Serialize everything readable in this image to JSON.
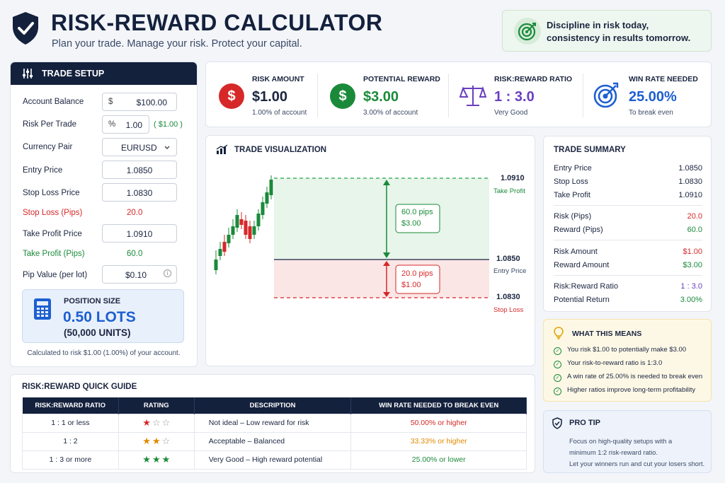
{
  "header": {
    "title": "RISK-REWARD CALCULATOR",
    "subtitle": "Plan your trade. Manage your risk. Protect your capital.",
    "quote_line1": "Discipline in risk today,",
    "quote_line2": "consistency in results tomorrow."
  },
  "setup": {
    "title": "TRADE SETUP",
    "account_balance_label": "Account Balance",
    "account_balance_prefix": "$",
    "account_balance_value": "$100.00",
    "risk_per_trade_label": "Risk Per Trade",
    "risk_per_trade_prefix": "%",
    "risk_per_trade_value": "1.00",
    "risk_per_trade_amount": "( $1.00 )",
    "currency_pair_label": "Currency Pair",
    "currency_pair_value": "EURUSD",
    "entry_price_label": "Entry Price",
    "entry_price_value": "1.0850",
    "stop_loss_label": "Stop Loss Price",
    "stop_loss_value": "1.0830",
    "stop_loss_pips_label": "Stop Loss (Pips)",
    "stop_loss_pips_value": "20.0",
    "take_profit_label": "Take Profit Price",
    "take_profit_value": "1.0910",
    "take_profit_pips_label": "Take Profit (Pips)",
    "take_profit_pips_value": "60.0",
    "pip_value_label": "Pip Value (per lot)",
    "pip_value_value": "$0.10",
    "position_size_title": "POSITION SIZE",
    "position_size_lots": "0.50 LOTS",
    "position_size_units": "(50,000 UNITS)",
    "position_note": "Calculated to risk $1.00 (1.00%) of your account."
  },
  "metrics": [
    {
      "label": "RISK AMOUNT",
      "value": "$1.00",
      "sub": "1.00% of account",
      "icon": "dollar-icon"
    },
    {
      "label": "POTENTIAL REWARD",
      "value": "$3.00",
      "sub": "3.00% of account",
      "icon": "dollar-icon"
    },
    {
      "label": "RISK:REWARD RATIO",
      "value": "1 : 3.0",
      "sub": "Very Good",
      "icon": "scale-icon"
    },
    {
      "label": "WIN RATE NEEDED",
      "value": "25.00%",
      "sub": "To break even",
      "icon": "target-icon"
    }
  ],
  "visualization": {
    "title": "TRADE VISUALIZATION",
    "tp_price": "1.0910",
    "tp_label": "Take Profit",
    "entry_price": "1.0850",
    "entry_label": "Entry Price",
    "sl_price": "1.0830",
    "sl_label": "Stop Loss",
    "reward_pips": "60.0 pips",
    "reward_amount": "$3.00",
    "risk_pips": "20.0 pips",
    "risk_amount": "$1.00"
  },
  "summary": {
    "title": "TRADE SUMMARY",
    "rows": [
      {
        "k": "Entry Price",
        "v": "1.0850"
      },
      {
        "k": "Stop Loss",
        "v": "1.0830"
      },
      {
        "k": "Take Profit",
        "v": "1.0910"
      },
      {
        "k": "Risk (Pips)",
        "v": "20.0"
      },
      {
        "k": "Reward (Pips)",
        "v": "60.0"
      },
      {
        "k": "Risk Amount",
        "v": "$1.00"
      },
      {
        "k": "Reward Amount",
        "v": "$3.00"
      },
      {
        "k": "Risk:Reward Ratio",
        "v": "1 : 3.0"
      },
      {
        "k": "Potential Return",
        "v": "3.00%"
      }
    ]
  },
  "means": {
    "title": "WHAT THIS MEANS",
    "items": [
      "You risk $1.00 to potentially make $3.00",
      "Your risk-to-reward ratio is 1:3.0",
      "A win rate of 25.00% is needed to break even",
      "Higher ratios improve long-term profitability"
    ]
  },
  "protip": {
    "title": "PRO TIP",
    "line1": "Focus on high-quality setups with a",
    "line2": "minimum 1:2 risk-reward ratio.",
    "line3": "Let your winners run and cut your losers short."
  },
  "guide": {
    "title": "RISK:REWARD QUICK GUIDE",
    "headers": [
      "RISK:REWARD RATIO",
      "RATING",
      "DESCRIPTION",
      "WIN RATE NEEDED TO BREAK EVEN"
    ],
    "rows": [
      {
        "ratio": "1 : 1 or less",
        "stars": 1,
        "desc": "Not ideal – Low reward for risk",
        "win": "50.00% or higher",
        "color": "#d62828"
      },
      {
        "ratio": "1 : 2",
        "stars": 2,
        "desc": "Acceptable – Balanced",
        "win": "33.33% or higher",
        "color": "#e08a00"
      },
      {
        "ratio": "1 : 3 or more",
        "stars": 3,
        "desc": "Very Good – High reward potential",
        "win": "25.00% or lower",
        "color": "#1a8a3a"
      }
    ]
  },
  "colors": {
    "navy": "#14213d",
    "red": "#d62828",
    "green": "#1a8a3a",
    "purple": "#6a3fc0",
    "blue": "#1d5fd1",
    "orange": "#e08a00"
  }
}
